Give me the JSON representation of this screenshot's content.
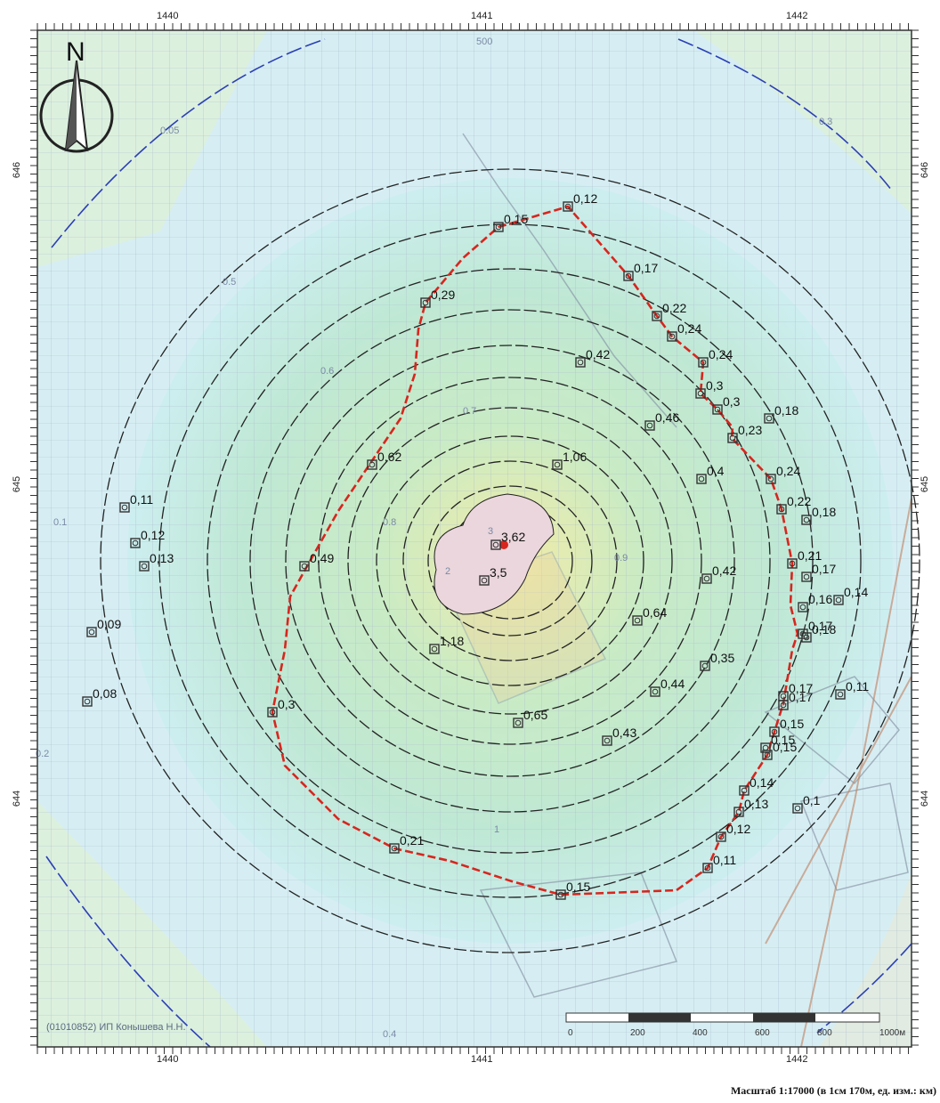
{
  "map": {
    "north_label": "N",
    "scale_caption": "Масштаб 1:17000 (в 1см 170м, ед. изм.: км)",
    "copyright": "(01010852) ИП Конышева Н.Н.",
    "colors": {
      "boundary": "#d7261e",
      "isoline": "#222222",
      "outer_isoline": "#2b3fb5",
      "background": "#d6eef3",
      "center_fill": "#f3e9a8",
      "receptor": "#333333"
    }
  },
  "axes": {
    "x_ticks": [
      "1440",
      "1441",
      "1442"
    ],
    "y_ticks": [
      "646",
      "645",
      "644"
    ]
  },
  "isoline_labels": [
    "500",
    "0.05",
    "0.1",
    "0.2",
    "0.3",
    "0.4",
    "0.5",
    "0.6",
    "0.7",
    "0.8",
    "0.9",
    "1",
    "2",
    "3"
  ],
  "receptors": [
    {
      "value": "0,12"
    },
    {
      "value": "0,15"
    },
    {
      "value": "0,17"
    },
    {
      "value": "0,29"
    },
    {
      "value": "0,22"
    },
    {
      "value": "0,24"
    },
    {
      "value": "0,42"
    },
    {
      "value": "0,24"
    },
    {
      "value": "0,3"
    },
    {
      "value": "0,3"
    },
    {
      "value": "0,18"
    },
    {
      "value": "0,46"
    },
    {
      "value": "0,23"
    },
    {
      "value": "0,62"
    },
    {
      "value": "1,06"
    },
    {
      "value": "0,4"
    },
    {
      "value": "0,24"
    },
    {
      "value": "0,11"
    },
    {
      "value": "0,22"
    },
    {
      "value": "0,18"
    },
    {
      "value": "0,12"
    },
    {
      "value": "3,62"
    },
    {
      "value": "0,13"
    },
    {
      "value": "0,49"
    },
    {
      "value": "0,21"
    },
    {
      "value": "0,17"
    },
    {
      "value": "3,5"
    },
    {
      "value": "0,42"
    },
    {
      "value": "0,16"
    },
    {
      "value": "0,14"
    },
    {
      "value": "0,64"
    },
    {
      "value": "0,09"
    },
    {
      "value": "0,17"
    },
    {
      "value": "0,18"
    },
    {
      "value": "1,18"
    },
    {
      "value": "0,35"
    },
    {
      "value": "0,17"
    },
    {
      "value": "0,08"
    },
    {
      "value": "0,44"
    },
    {
      "value": "0,17"
    },
    {
      "value": "0,11"
    },
    {
      "value": "0,3"
    },
    {
      "value": "0,65"
    },
    {
      "value": "0,15"
    },
    {
      "value": "0,43"
    },
    {
      "value": "0,15"
    },
    {
      "value": "0,15"
    },
    {
      "value": "0,14"
    },
    {
      "value": "0,1"
    },
    {
      "value": "0,13"
    },
    {
      "value": "0,12"
    },
    {
      "value": "0,21"
    },
    {
      "value": "0,11"
    },
    {
      "value": "0,15"
    }
  ],
  "scale_bar": {
    "ticks": [
      "0",
      "200",
      "400",
      "600",
      "800",
      "1000м"
    ]
  }
}
